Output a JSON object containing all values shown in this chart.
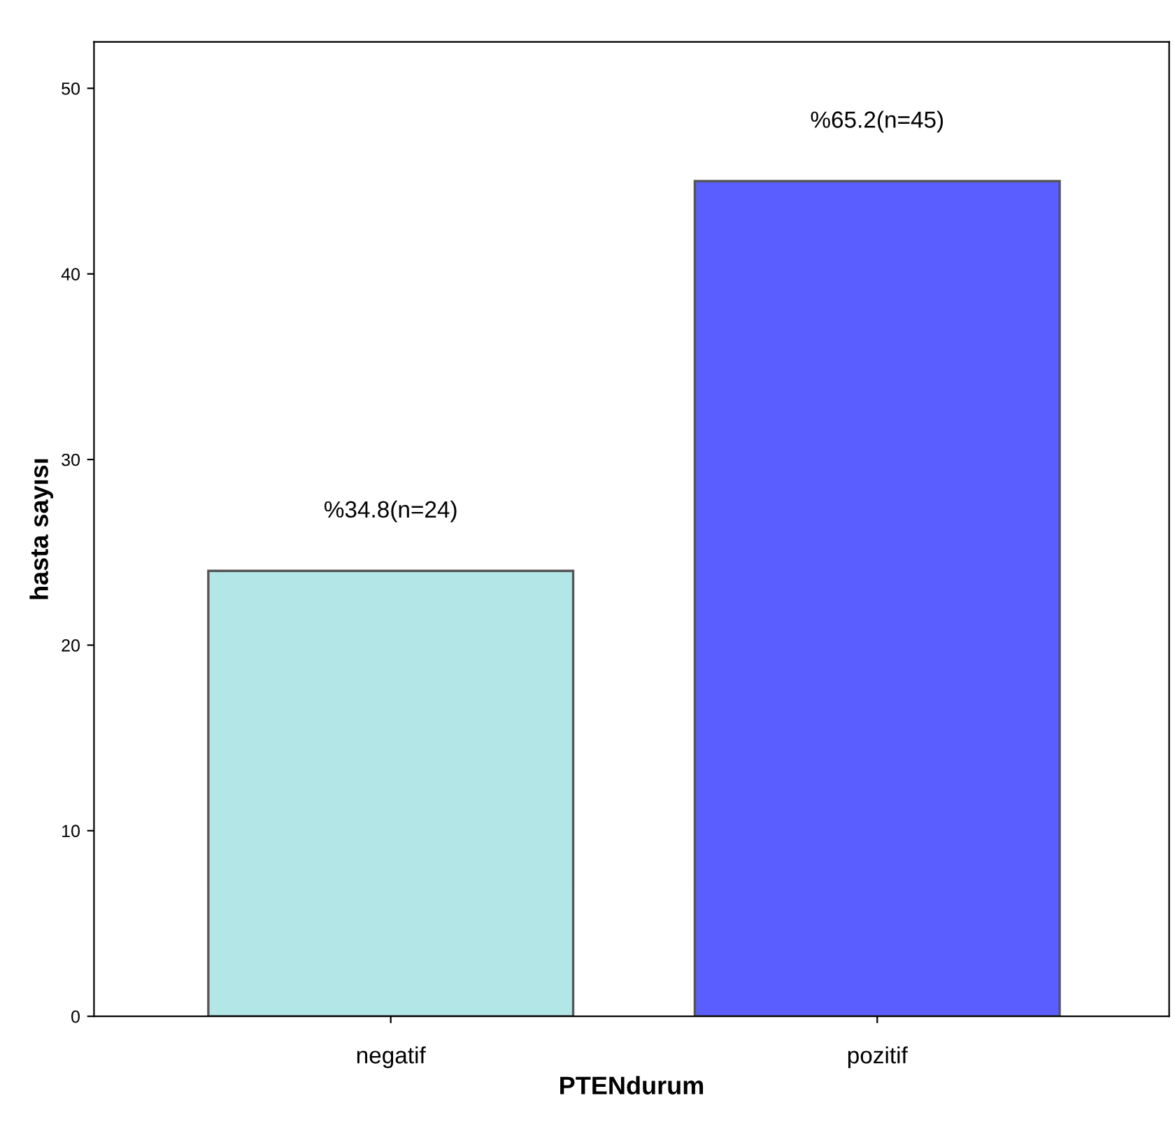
{
  "chart_data": {
    "type": "bar",
    "xlabel": "PTENdurum",
    "ylabel": "hasta sayısı",
    "categories": [
      "negatif",
      "pozitif"
    ],
    "values": [
      24,
      45
    ],
    "colors": [
      "#b3e6e6",
      "#5a5eff"
    ],
    "value_labels": [
      "%34.8(n=24)",
      "%65.2(n=45)"
    ],
    "ylim": [
      0,
      52.5
    ],
    "yticks": [
      0,
      10,
      20,
      30,
      40,
      50
    ],
    "grid": false,
    "legend": false
  }
}
